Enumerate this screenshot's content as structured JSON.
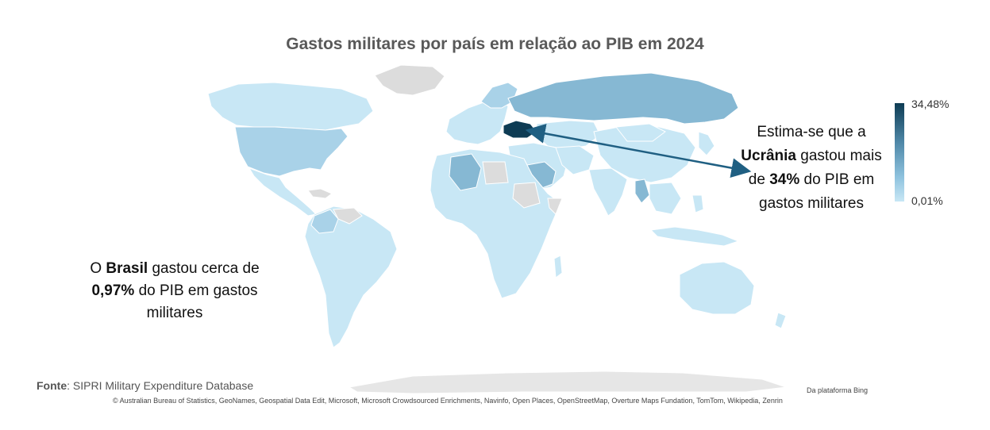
{
  "title": "Gastos militares por país em relação ao PIB em 2024",
  "colors": {
    "country_min": "#c8e7f5",
    "country_mid": "#8ec2de",
    "country_high": "#6ea7c6",
    "country_max": "#0e3c54",
    "no_data": "#dcdcdc",
    "arrow": "#1f5f82"
  },
  "legend": {
    "max_label": "34,48%",
    "min_label": "0,01%"
  },
  "annotations": {
    "brazil": {
      "p1": "O ",
      "b1": "Brasil",
      "p2": " gastou cerca de ",
      "b2": "0,97%",
      "p3": " do PIB em gastos militares"
    },
    "ukraine": {
      "p1": "Estima-se que a ",
      "b1": "Ucrânia",
      "p2": " gastou mais de ",
      "b2": "34%",
      "p3": " do PIB em gastos militares"
    }
  },
  "source": {
    "label": "Fonte",
    "text": ": SIPRI Military Expenditure Database"
  },
  "attribution": {
    "bing": "Da plataforma Bing",
    "credits": "© Australian Bureau of Statistics, GeoNames, Geospatial Data Edit, Microsoft, Microsoft Crowdsourced Enrichments, Navinfo, Open Places, OpenStreetMap, Overture Maps Fundation, TomTom, Wikipedia, Zenrin"
  }
}
